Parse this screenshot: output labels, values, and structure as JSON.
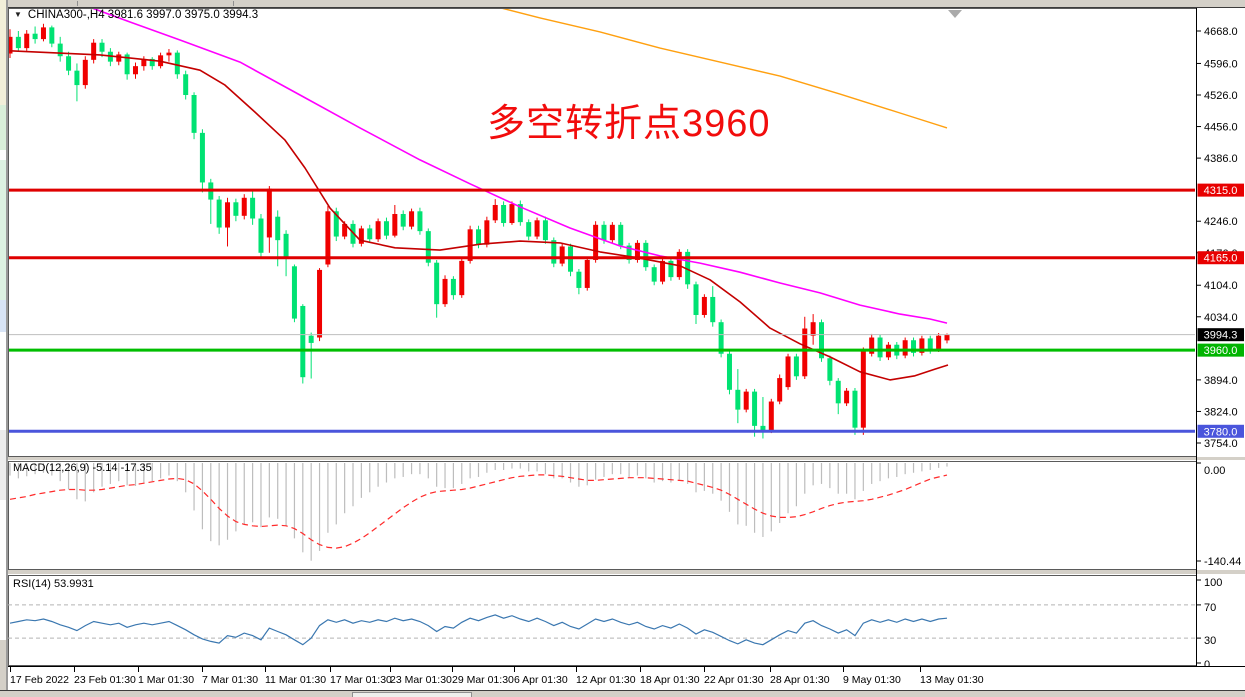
{
  "window": {
    "title": "CHINA300-,H4 3981.6 3997.0 3975.0 3994.3",
    "symbol": "CHINA300-",
    "period": "H4",
    "ohlc": {
      "open": "3981.6",
      "high": "3997.0",
      "low": "3975.0",
      "close": "3994.3"
    }
  },
  "annotation": {
    "text": "多空转折点3960",
    "color": "#f20c0c"
  },
  "indicators": {
    "macd_label": "MACD(12,26,9) -5.14 -17.35",
    "rsi_label": "RSI(14) 53.9931"
  },
  "axis": {
    "price_ticks": [
      "4668.0",
      "4596.0",
      "4526.0",
      "4456.0",
      "4386.0",
      "4246.0",
      "4176.0",
      "4104.0",
      "4034.0",
      "3894.0",
      "3824.0",
      "3754.0"
    ],
    "macd_ticks": [
      "0.00",
      "-140.44"
    ],
    "rsi_ticks": [
      "100",
      "70",
      "30",
      "0"
    ],
    "time_labels": [
      "17 Feb 2022",
      "23 Feb 01:30",
      "1 Mar 01:30",
      "7 Mar 01:30",
      "11 Mar 01:30",
      "17 Mar 01:30",
      "23 Mar 01:30",
      "29 Mar 01:30",
      "6 Apr 01:30",
      "12 Apr 01:30",
      "18 Apr 01:30",
      "22 Apr 01:30",
      "28 Apr 01:30",
      "9 May 01:30",
      "13 May 01:30"
    ]
  },
  "levels": [
    {
      "label": "4315.0",
      "price": 4315.0,
      "color": "#df0000",
      "width": 3,
      "tag_bg": "#e80000"
    },
    {
      "label": "4165.0",
      "price": 4165.0,
      "color": "#df0000",
      "width": 3,
      "tag_bg": "#e80000"
    },
    {
      "label": "3994.3",
      "price": 3994.3,
      "color": "#bebebe",
      "width": 1,
      "tag_bg": "#000000"
    },
    {
      "label": "3960.0",
      "price": 3960.0,
      "color": "#00be00",
      "width": 3,
      "tag_bg": "#00b400"
    },
    {
      "label": "3780.0",
      "price": 3780.0,
      "color": "#4a55dc",
      "width": 3,
      "tag_bg": "#4a55dc"
    }
  ],
  "colors": {
    "candle_up": "#f00000",
    "candle_down": "#00e272",
    "ma_fast": "#c40000",
    "ma_slow": "#ff00ff",
    "ma_long": "#ffa010",
    "macd_histogram": "#bdbdbd",
    "macd_signal": "#ff2a2a",
    "rsi_line": "#3a77b0",
    "panel_border": "#5a5a5a",
    "grid_dash": "#b4b4b4",
    "tag_text": "#ffffff",
    "chrome": "#d4d0c8"
  },
  "chart_data": {
    "type": "candlestick",
    "symbol": "CHINA300-",
    "timeframe": "H4",
    "x_start": "17 Feb 2022",
    "x_end": "13 May 2022",
    "price_range_visible": [
      3725,
      4722
    ],
    "candles": [
      [
        4618,
        4672,
        4608,
        4655
      ],
      [
        4655,
        4668,
        4622,
        4630
      ],
      [
        4630,
        4670,
        4624,
        4662
      ],
      [
        4662,
        4678,
        4640,
        4650
      ],
      [
        4650,
        4684,
        4645,
        4676
      ],
      [
        4676,
        4680,
        4632,
        4640
      ],
      [
        4640,
        4655,
        4600,
        4612
      ],
      [
        4612,
        4622,
        4570,
        4580
      ],
      [
        4580,
        4596,
        4512,
        4548
      ],
      [
        4548,
        4612,
        4540,
        4604
      ],
      [
        4604,
        4650,
        4596,
        4642
      ],
      [
        4642,
        4650,
        4610,
        4622
      ],
      [
        4622,
        4630,
        4590,
        4600
      ],
      [
        4600,
        4622,
        4592,
        4616
      ],
      [
        4616,
        4620,
        4560,
        4572
      ],
      [
        4572,
        4598,
        4562,
        4590
      ],
      [
        4590,
        4612,
        4580,
        4606
      ],
      [
        4606,
        4610,
        4582,
        4590
      ],
      [
        4590,
        4620,
        4585,
        4614
      ],
      [
        4614,
        4628,
        4600,
        4620
      ],
      [
        4620,
        4625,
        4562,
        4572
      ],
      [
        4572,
        4580,
        4516,
        4526
      ],
      [
        4526,
        4532,
        4428,
        4442
      ],
      [
        4442,
        4450,
        4310,
        4332
      ],
      [
        4332,
        4340,
        4240,
        4294
      ],
      [
        4294,
        4302,
        4218,
        4232
      ],
      [
        4232,
        4298,
        4190,
        4288
      ],
      [
        4288,
        4296,
        4246,
        4258
      ],
      [
        4258,
        4306,
        4250,
        4298
      ],
      [
        4298,
        4315,
        4238,
        4252
      ],
      [
        4252,
        4262,
        4166,
        4176
      ],
      [
        4210,
        4324,
        4176,
        4318
      ],
      [
        4256,
        4270,
        4146,
        4204
      ],
      [
        4218,
        4226,
        4124,
        4166
      ],
      [
        4146,
        4150,
        4022,
        4030
      ],
      [
        4058,
        4062,
        3886,
        3900
      ],
      [
        3992,
        3999,
        3897,
        3976
      ],
      [
        3988,
        4142,
        3980,
        4138
      ],
      [
        4150,
        4280,
        4144,
        4268
      ],
      [
        4268,
        4276,
        4202,
        4212
      ],
      [
        4212,
        4246,
        4206,
        4240
      ],
      [
        4240,
        4248,
        4188,
        4196
      ],
      [
        4196,
        4236,
        4190,
        4230
      ],
      [
        4230,
        4238,
        4198,
        4206
      ],
      [
        4206,
        4252,
        4200,
        4246
      ],
      [
        4246,
        4254,
        4206,
        4214
      ],
      [
        4214,
        4282,
        4210,
        4262
      ],
      [
        4262,
        4270,
        4226,
        4234
      ],
      [
        4234,
        4274,
        4228,
        4268
      ],
      [
        4268,
        4276,
        4216,
        4224
      ],
      [
        4224,
        4230,
        4146,
        4154
      ],
      [
        4154,
        4160,
        4032,
        4062
      ],
      [
        4062,
        4126,
        4056,
        4118
      ],
      [
        4118,
        4124,
        4072,
        4082
      ],
      [
        4082,
        4164,
        4076,
        4158
      ],
      [
        4158,
        4236,
        4152,
        4228
      ],
      [
        4228,
        4236,
        4186,
        4194
      ],
      [
        4194,
        4256,
        4188,
        4248
      ],
      [
        4248,
        4295,
        4242,
        4282
      ],
      [
        4282,
        4290,
        4234,
        4242
      ],
      [
        4242,
        4290,
        4238,
        4284
      ],
      [
        4284,
        4292,
        4236,
        4244
      ],
      [
        4244,
        4250,
        4204,
        4212
      ],
      [
        4212,
        4254,
        4206,
        4248
      ],
      [
        4248,
        4256,
        4196,
        4204
      ],
      [
        4204,
        4210,
        4144,
        4152
      ],
      [
        4152,
        4196,
        4146,
        4190
      ],
      [
        4190,
        4196,
        4124,
        4134
      ],
      [
        4134,
        4140,
        4084,
        4098
      ],
      [
        4098,
        4166,
        4092,
        4160
      ],
      [
        4160,
        4246,
        4154,
        4238
      ],
      [
        4238,
        4246,
        4196,
        4204
      ],
      [
        4204,
        4244,
        4198,
        4238
      ],
      [
        4238,
        4244,
        4184,
        4192
      ],
      [
        4192,
        4198,
        4152,
        4160
      ],
      [
        4160,
        4204,
        4154,
        4198
      ],
      [
        4198,
        4204,
        4136,
        4144
      ],
      [
        4144,
        4150,
        4104,
        4112
      ],
      [
        4112,
        4164,
        4106,
        4158
      ],
      [
        4158,
        4164,
        4114,
        4122
      ],
      [
        4122,
        4184,
        4116,
        4178
      ],
      [
        4178,
        4184,
        4096,
        4106
      ],
      [
        4106,
        4112,
        4018,
        4038
      ],
      [
        4038,
        4084,
        4032,
        4078
      ],
      [
        4078,
        4102,
        4012,
        4022
      ],
      [
        4022,
        4028,
        3944,
        3952
      ],
      [
        3952,
        3958,
        3862,
        3872
      ],
      [
        3872,
        3918,
        3798,
        3828
      ],
      [
        3828,
        3874,
        3822,
        3868
      ],
      [
        3868,
        3874,
        3768,
        3792
      ],
      [
        3792,
        3856,
        3764,
        3782
      ],
      [
        3782,
        3852,
        3776,
        3846
      ],
      [
        3846,
        3906,
        3840,
        3898
      ],
      [
        3878,
        3952,
        3872,
        3946
      ],
      [
        3946,
        3952,
        3894,
        3902
      ],
      [
        3902,
        4034,
        3896,
        4008
      ],
      [
        3992,
        4040,
        3972,
        4022
      ],
      [
        4022,
        4028,
        3934,
        3942
      ],
      [
        3942,
        3948,
        3882,
        3892
      ],
      [
        3892,
        3898,
        3818,
        3842
      ],
      [
        3842,
        3876,
        3836,
        3870
      ],
      [
        3870,
        3876,
        3772,
        3788
      ],
      [
        3788,
        3966,
        3772,
        3960
      ],
      [
        3952,
        3996,
        3946,
        3988
      ],
      [
        3988,
        3994,
        3936,
        3944
      ],
      [
        3944,
        3978,
        3938,
        3972
      ],
      [
        3972,
        3978,
        3940,
        3948
      ],
      [
        3948,
        3988,
        3942,
        3982
      ],
      [
        3982,
        3988,
        3946,
        3954
      ],
      [
        3954,
        3992,
        3948,
        3986
      ],
      [
        3986,
        3992,
        3952,
        3962
      ],
      [
        3962,
        3998,
        3956,
        3992
      ],
      [
        3981.6,
        3997,
        3975,
        3994.3
      ]
    ],
    "macd": {
      "params": "12,26,9",
      "current_main": -5.14,
      "current_signal": -17.35,
      "range": [
        -140.44,
        0
      ],
      "histogram": [
        -18,
        -22,
        -19,
        -16,
        -14,
        -18,
        -26,
        -38,
        -52,
        -55,
        -42,
        -34,
        -30,
        -26,
        -32,
        -33,
        -28,
        -26,
        -22,
        -18,
        -26,
        -42,
        -68,
        -95,
        -112,
        -118,
        -110,
        -98,
        -88,
        -85,
        -92,
        -78,
        -80,
        -90,
        -108,
        -128,
        -140,
        -126,
        -100,
        -88,
        -72,
        -62,
        -50,
        -42,
        -34,
        -28,
        -22,
        -20,
        -16,
        -16,
        -22,
        -34,
        -36,
        -36,
        -30,
        -22,
        -20,
        -14,
        -10,
        -10,
        -8,
        -8,
        -12,
        -12,
        -16,
        -22,
        -22,
        -28,
        -34,
        -32,
        -24,
        -20,
        -16,
        -16,
        -20,
        -18,
        -22,
        -28,
        -26,
        -28,
        -24,
        -30,
        -42,
        -40,
        -44,
        -54,
        -70,
        -88,
        -90,
        -100,
        -106,
        -98,
        -86,
        -72,
        -62,
        -44,
        -32,
        -30,
        -36,
        -44,
        -44,
        -52,
        -40,
        -30,
        -26,
        -22,
        -20,
        -16,
        -14,
        -12,
        -10,
        -7,
        -5.14
      ],
      "signal": [
        -52,
        -50,
        -48,
        -45,
        -43,
        -41,
        -39,
        -38,
        -38,
        -39,
        -39,
        -38,
        -36,
        -34,
        -32,
        -31,
        -29,
        -27,
        -25,
        -23,
        -22,
        -24,
        -30,
        -40,
        -52,
        -65,
        -76,
        -84,
        -88,
        -90,
        -91,
        -90,
        -89,
        -90,
        -94,
        -101,
        -110,
        -117,
        -121,
        -122,
        -120,
        -115,
        -108,
        -100,
        -91,
        -82,
        -73,
        -64,
        -56,
        -49,
        -44,
        -41,
        -40,
        -39,
        -38,
        -36,
        -33,
        -30,
        -27,
        -24,
        -21,
        -19,
        -18,
        -17,
        -17,
        -18,
        -19,
        -21,
        -23,
        -25,
        -25,
        -24,
        -23,
        -22,
        -21,
        -21,
        -21,
        -22,
        -23,
        -24,
        -25,
        -26,
        -29,
        -32,
        -35,
        -39,
        -45,
        -52,
        -59,
        -66,
        -72,
        -76,
        -78,
        -78,
        -77,
        -74,
        -70,
        -65,
        -61,
        -58,
        -56,
        -55,
        -54,
        -52,
        -49,
        -46,
        -42,
        -38,
        -33,
        -28,
        -23,
        -20,
        -17.35
      ]
    },
    "rsi": {
      "period": 14,
      "current": 53.9931,
      "range": [
        0,
        100
      ],
      "levels": [
        30,
        70
      ],
      "values": [
        48,
        50,
        52,
        51,
        53,
        50,
        46,
        43,
        39,
        45,
        50,
        48,
        46,
        48,
        43,
        46,
        48,
        46,
        48,
        50,
        45,
        40,
        34,
        29,
        26,
        24,
        33,
        31,
        36,
        33,
        28,
        42,
        38,
        34,
        28,
        22,
        30,
        45,
        52,
        49,
        52,
        48,
        51,
        49,
        52,
        50,
        54,
        51,
        53,
        50,
        45,
        38,
        44,
        42,
        49,
        54,
        51,
        55,
        58,
        54,
        57,
        53,
        50,
        54,
        50,
        45,
        49,
        44,
        41,
        47,
        53,
        50,
        53,
        49,
        46,
        49,
        44,
        41,
        45,
        42,
        47,
        42,
        35,
        40,
        37,
        32,
        27,
        23,
        28,
        24,
        22,
        28,
        34,
        39,
        36,
        48,
        51,
        45,
        41,
        36,
        40,
        33,
        48,
        52,
        49,
        52,
        49,
        53,
        50,
        53,
        50,
        53,
        53.9931
      ]
    },
    "overlays": [
      {
        "name": "ma-fast-red",
        "color": "#c40000",
        "width": 1.6,
        "points": [
          [
            10,
            4624
          ],
          [
            100,
            4615
          ],
          [
            160,
            4601
          ],
          [
            200,
            4581
          ],
          [
            225,
            4548
          ],
          [
            255,
            4488
          ],
          [
            285,
            4426
          ],
          [
            305,
            4364
          ],
          [
            330,
            4275
          ],
          [
            360,
            4204
          ],
          [
            395,
            4187
          ],
          [
            440,
            4182
          ],
          [
            480,
            4195
          ],
          [
            520,
            4202
          ],
          [
            560,
            4198
          ],
          [
            600,
            4178
          ],
          [
            640,
            4164
          ],
          [
            680,
            4147
          ],
          [
            710,
            4116
          ],
          [
            740,
            4067
          ],
          [
            770,
            4009
          ],
          [
            800,
            3974
          ],
          [
            830,
            3945
          ],
          [
            860,
            3912
          ],
          [
            890,
            3894
          ],
          [
            915,
            3903
          ],
          [
            935,
            3918
          ],
          [
            948,
            3927
          ]
        ]
      },
      {
        "name": "ma-slow-magenta",
        "color": "#ff00ff",
        "width": 1.6,
        "points": [
          [
            92,
            4719
          ],
          [
            130,
            4688
          ],
          [
            180,
            4648
          ],
          [
            240,
            4599
          ],
          [
            300,
            4526
          ],
          [
            360,
            4453
          ],
          [
            420,
            4382
          ],
          [
            470,
            4329
          ],
          [
            520,
            4278
          ],
          [
            570,
            4231
          ],
          [
            620,
            4191
          ],
          [
            660,
            4169
          ],
          [
            700,
            4153
          ],
          [
            740,
            4133
          ],
          [
            780,
            4109
          ],
          [
            820,
            4087
          ],
          [
            860,
            4060
          ],
          [
            900,
            4040
          ],
          [
            930,
            4029
          ],
          [
            947,
            4020
          ]
        ]
      },
      {
        "name": "ma-long-orange",
        "color": "#ffa010",
        "width": 1.4,
        "points": [
          [
            478,
            4732
          ],
          [
            540,
            4697
          ],
          [
            600,
            4666
          ],
          [
            660,
            4630
          ],
          [
            720,
            4599
          ],
          [
            780,
            4568
          ],
          [
            840,
            4528
          ],
          [
            900,
            4486
          ],
          [
            947,
            4453
          ]
        ]
      }
    ]
  }
}
